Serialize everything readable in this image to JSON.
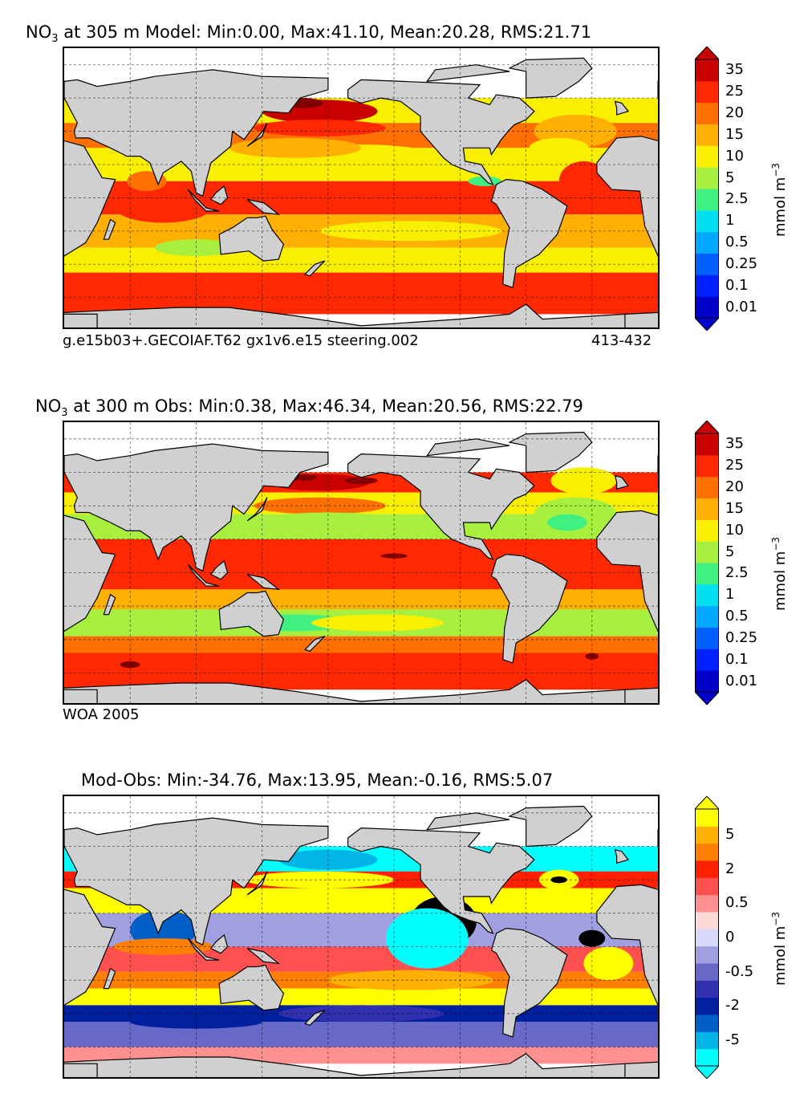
{
  "chart_data": [
    {
      "type": "heatmap",
      "title_prefix": "NO",
      "title_sub": "3",
      "title_rest": " at 305 m Model: Min:0.00, Max:41.10, Mean:20.28, RMS:21.71",
      "stats": {
        "min": 0.0,
        "max": 41.1,
        "mean": 20.28,
        "rms": 21.71
      },
      "depth_m": 305,
      "footer_left": "g.e15b03+.GECOIAF.T62 gx1v6.e15 steering.002",
      "footer_right": "413-432",
      "colorbar": {
        "levels": [
          "0.01",
          "0.1",
          "0.25",
          "0.5",
          "1",
          "2.5",
          "5",
          "10",
          "15",
          "20",
          "25",
          "35"
        ],
        "unit_main": "mmol m",
        "unit_sup": "−3",
        "colors": [
          "#00008f",
          "#0000c8",
          "#0020ff",
          "#0060ff",
          "#00a8ff",
          "#00e0f0",
          "#40f080",
          "#a8f040",
          "#f8f000",
          "#ffb000",
          "#ff7000",
          "#ff2800",
          "#c80000",
          "#800000"
        ]
      }
    },
    {
      "type": "heatmap",
      "title_prefix": "NO",
      "title_sub": "3",
      "title_rest": " at 300 m Obs: Min:0.38, Max:46.34, Mean:20.56, RMS:22.79",
      "stats": {
        "min": 0.38,
        "max": 46.34,
        "mean": 20.56,
        "rms": 22.79
      },
      "depth_m": 300,
      "footer_left": "WOA 2005",
      "colorbar": {
        "levels": [
          "0.01",
          "0.1",
          "0.25",
          "0.5",
          "1",
          "2.5",
          "5",
          "10",
          "15",
          "20",
          "25",
          "35"
        ],
        "unit_main": "mmol m",
        "unit_sup": "−3",
        "colors": [
          "#00008f",
          "#0000c8",
          "#0020ff",
          "#0060ff",
          "#00a8ff",
          "#00e0f0",
          "#40f080",
          "#a8f040",
          "#f8f000",
          "#ffb000",
          "#ff7000",
          "#ff2800",
          "#c80000",
          "#800000"
        ]
      }
    },
    {
      "type": "heatmap",
      "title": "Mod-Obs: Min:-34.76, Max:13.95, Mean:-0.16, RMS:5.07",
      "stats": {
        "min": -34.76,
        "max": 13.95,
        "mean": -0.16,
        "rms": 5.07
      },
      "colorbar": {
        "labels": [
          "-5",
          "-2",
          "-0.5",
          "0",
          "0.5",
          "2",
          "5"
        ],
        "unit_main": "mmol m",
        "unit_sup": "−3",
        "colors": [
          "#00ffff",
          "#00b4e8",
          "#0060c8",
          "#0020a0",
          "#3030b0",
          "#6868c8",
          "#a0a0e0",
          "#d8d8f8",
          "#ffd8d8",
          "#ff9090",
          "#ff5050",
          "#ff2000",
          "#ff8000",
          "#ffb000",
          "#ffff00",
          "#000000"
        ]
      }
    }
  ]
}
